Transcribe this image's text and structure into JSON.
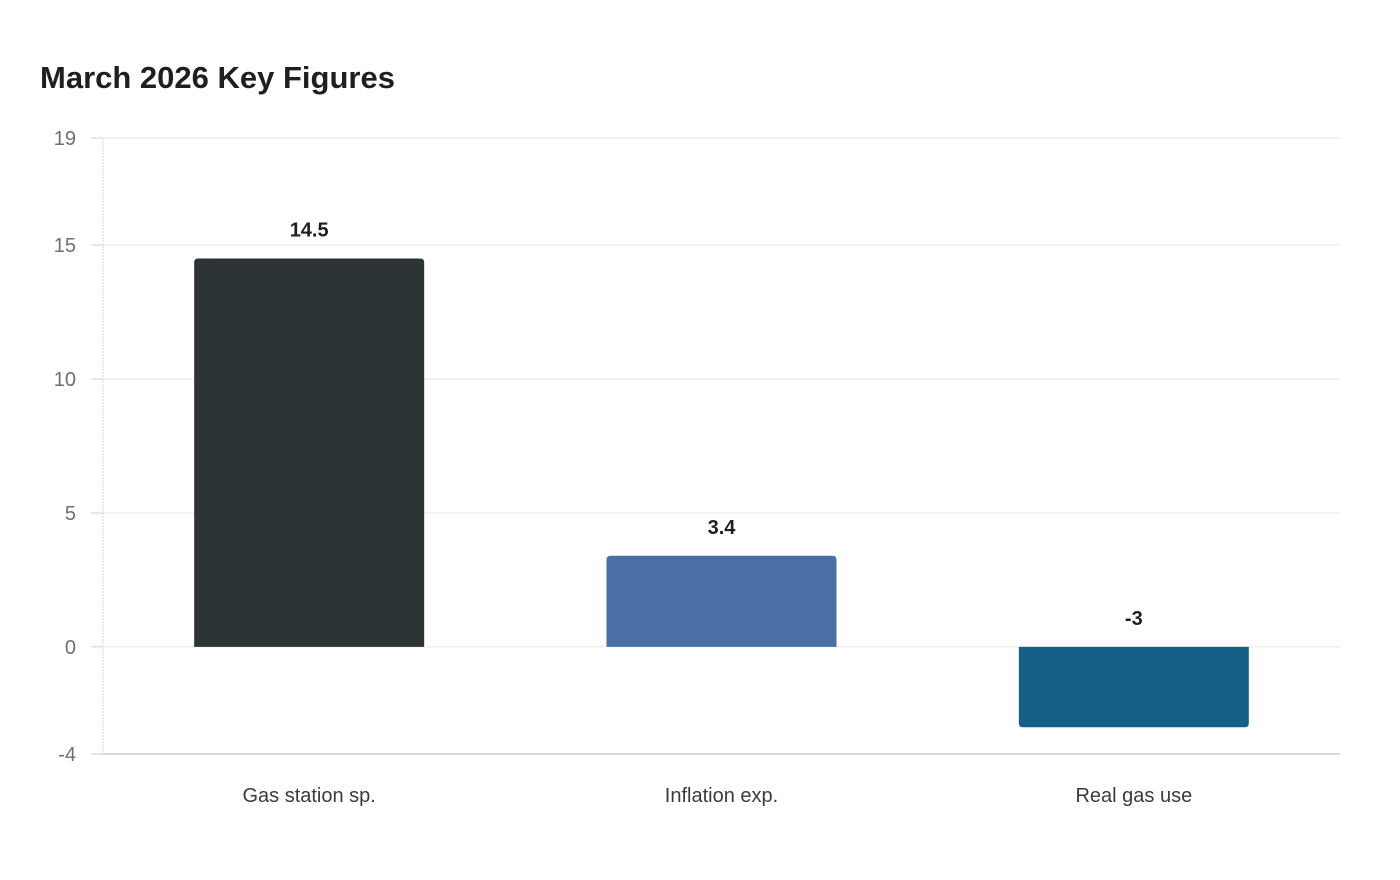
{
  "chart_data": {
    "type": "bar",
    "title": "March 2026 Key Figures",
    "xlabel": "",
    "ylabel": "",
    "categories": [
      "Gas station sp.",
      "Inflation exp.",
      "Real gas use"
    ],
    "values": [
      14.5,
      3.4,
      -3
    ],
    "value_labels": [
      "14.5",
      "3.4",
      "-3"
    ],
    "colors": [
      "#2d3436",
      "#4a6fa5",
      "#166088"
    ],
    "ylim": [
      -4,
      19
    ],
    "yticks": [
      -4,
      0,
      5,
      10,
      15,
      19
    ],
    "ytick_labels": [
      "-4",
      "0",
      "5",
      "10",
      "15",
      "19"
    ],
    "grid": true,
    "legend": "none"
  }
}
